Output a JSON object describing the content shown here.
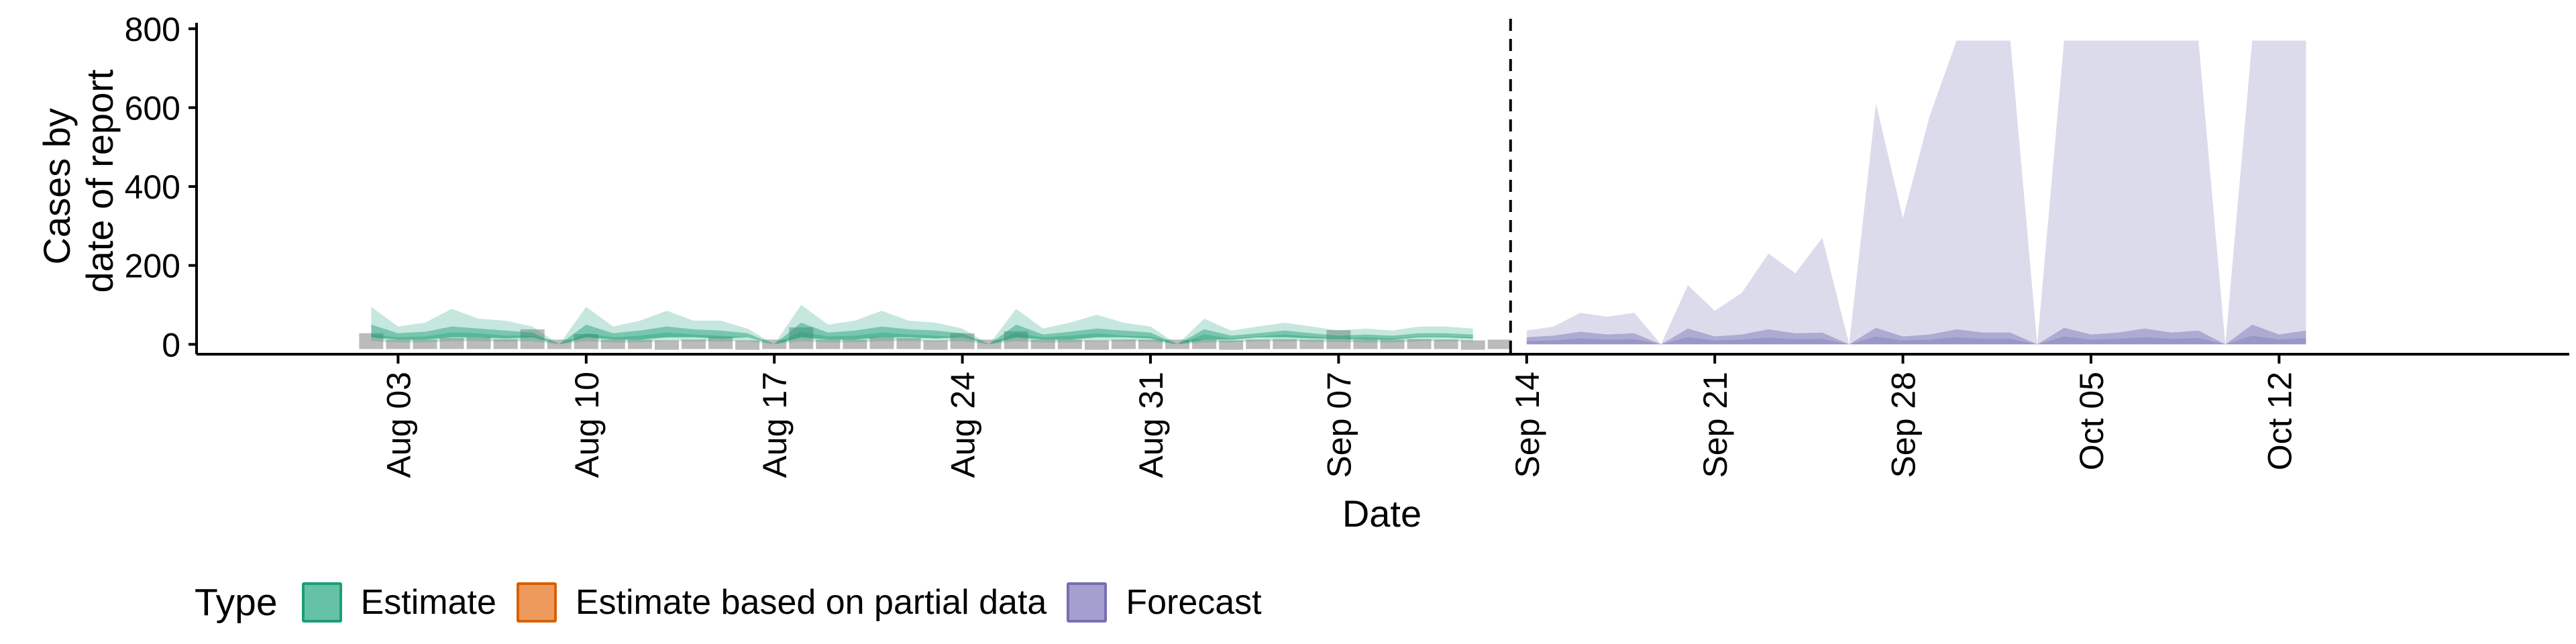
{
  "chart_data": {
    "type": "area",
    "title": "",
    "xlabel": "Date",
    "ylabel_lines": [
      "Cases by",
      "date of report"
    ],
    "ylim": [
      -25,
      815
    ],
    "yticks": [
      0,
      200,
      400,
      600,
      800
    ],
    "xlim": [
      -7.5,
      80.8
    ],
    "x_origin_date": "Aug 03",
    "x_ticks": [
      {
        "day": 0,
        "label": "Aug 03"
      },
      {
        "day": 7,
        "label": "Aug 10"
      },
      {
        "day": 14,
        "label": "Aug 17"
      },
      {
        "day": 21,
        "label": "Aug 24"
      },
      {
        "day": 28,
        "label": "Aug 31"
      },
      {
        "day": 35,
        "label": "Sep 07"
      },
      {
        "day": 42,
        "label": "Sep 14"
      },
      {
        "day": 49,
        "label": "Sep 21"
      },
      {
        "day": 56,
        "label": "Sep 28"
      },
      {
        "day": 63,
        "label": "Oct 05"
      },
      {
        "day": 70,
        "label": "Oct 12"
      }
    ],
    "vline_day": 41.4,
    "grid": false,
    "legend": {
      "title": "Type",
      "position": "bottom-left",
      "entries": [
        {
          "label": "Estimate",
          "fill": "#66c2a5",
          "border": "#1b9e77"
        },
        {
          "label": "Estimate based on partial data",
          "fill": "#ee9a5c",
          "border": "#d95f02"
        },
        {
          "label": "Forecast",
          "fill": "#a49fcf",
          "border": "#7570b3"
        }
      ]
    },
    "reported_cases": {
      "color": "#b4b4b4",
      "days": [
        -1,
        0,
        1,
        2,
        3,
        4,
        5,
        6,
        7,
        8,
        9,
        10,
        11,
        12,
        13,
        14,
        15,
        16,
        17,
        18,
        19,
        20,
        21,
        22,
        23,
        24,
        25,
        26,
        27,
        28,
        29,
        30,
        31,
        32,
        33,
        34,
        35,
        36,
        37,
        38,
        39,
        40,
        41
      ],
      "values": [
        40,
        10,
        5,
        28,
        30,
        25,
        50,
        0,
        38,
        5,
        10,
        20,
        15,
        30,
        20,
        0,
        55,
        10,
        5,
        30,
        28,
        20,
        40,
        0,
        45,
        10,
        5,
        20,
        15,
        10,
        0,
        10,
        20,
        15,
        25,
        15,
        48,
        5,
        10,
        25,
        15,
        20,
        15
      ]
    },
    "series": [
      {
        "name": "Estimate",
        "fill": "#1b9e77",
        "days": [
          -1,
          0,
          1,
          2,
          3,
          4,
          5,
          6,
          7,
          8,
          9,
          10,
          11,
          12,
          13,
          14,
          15,
          16,
          17,
          18,
          19,
          20,
          21,
          22,
          23,
          24,
          25,
          26,
          27,
          28,
          29,
          30,
          31,
          32,
          33,
          34,
          35,
          36,
          37,
          38,
          39,
          40
        ],
        "outer_lower": [
          8,
          5,
          5,
          8,
          8,
          7,
          8,
          0,
          8,
          5,
          5,
          8,
          8,
          7,
          8,
          0,
          8,
          5,
          5,
          8,
          8,
          7,
          8,
          0,
          8,
          5,
          5,
          8,
          8,
          7,
          0,
          5,
          5,
          8,
          8,
          7,
          6,
          5,
          5,
          8,
          8,
          7
        ],
        "outer_upper": [
          95,
          45,
          55,
          90,
          65,
          60,
          45,
          0,
          95,
          45,
          60,
          85,
          60,
          60,
          40,
          0,
          100,
          50,
          60,
          85,
          60,
          55,
          40,
          0,
          90,
          40,
          55,
          75,
          55,
          45,
          0,
          65,
          35,
          45,
          55,
          45,
          35,
          40,
          35,
          45,
          45,
          40
        ],
        "inner_lower": [
          18,
          12,
          12,
          18,
          18,
          15,
          18,
          0,
          18,
          12,
          12,
          18,
          18,
          15,
          18,
          0,
          18,
          12,
          12,
          18,
          18,
          15,
          18,
          0,
          18,
          12,
          12,
          18,
          18,
          15,
          0,
          12,
          12,
          18,
          18,
          15,
          14,
          12,
          12,
          18,
          18,
          15
        ],
        "inner_upper": [
          50,
          28,
          32,
          45,
          40,
          35,
          30,
          0,
          50,
          28,
          35,
          45,
          38,
          35,
          28,
          0,
          55,
          30,
          35,
          45,
          38,
          35,
          28,
          0,
          50,
          25,
          32,
          40,
          35,
          30,
          0,
          38,
          22,
          28,
          35,
          28,
          22,
          25,
          22,
          28,
          28,
          25
        ],
        "median": [
          25,
          18,
          20,
          30,
          28,
          22,
          22,
          0,
          28,
          18,
          22,
          30,
          25,
          22,
          18,
          0,
          32,
          20,
          22,
          30,
          25,
          22,
          18,
          0,
          30,
          18,
          22,
          28,
          22,
          20,
          0,
          25,
          15,
          20,
          25,
          20,
          15,
          18,
          15,
          20,
          20,
          18
        ]
      },
      {
        "name": "Forecast",
        "fill": "#7570b3",
        "days": [
          42,
          43,
          44,
          45,
          46,
          47,
          48,
          49,
          50,
          51,
          52,
          53,
          54,
          55,
          56,
          57,
          58,
          59,
          60,
          61,
          62,
          63,
          64,
          65,
          66,
          67,
          68,
          69,
          70,
          71
        ],
        "outer_lower": [
          0,
          0,
          0,
          0,
          0,
          0,
          0,
          0,
          0,
          0,
          0,
          0,
          0,
          0,
          0,
          0,
          0,
          0,
          0,
          0,
          0,
          0,
          0,
          0,
          0,
          0,
          0,
          0,
          0,
          0
        ],
        "outer_upper": [
          35,
          45,
          80,
          70,
          80,
          0,
          150,
          85,
          130,
          230,
          180,
          270,
          0,
          610,
          320,
          580,
          770,
          770,
          770,
          0,
          770,
          770,
          770,
          770,
          770,
          770,
          0,
          770,
          770,
          770
        ],
        "inner_lower": [
          0,
          0,
          0,
          0,
          0,
          0,
          0,
          0,
          0,
          0,
          0,
          0,
          0,
          0,
          0,
          0,
          0,
          0,
          0,
          0,
          0,
          0,
          0,
          0,
          0,
          0,
          0,
          0,
          0,
          0
        ],
        "inner_upper": [
          18,
          22,
          32,
          25,
          28,
          0,
          40,
          20,
          25,
          38,
          28,
          30,
          0,
          42,
          20,
          25,
          38,
          30,
          30,
          0,
          42,
          25,
          30,
          40,
          30,
          35,
          0,
          50,
          25,
          35
        ],
        "median": [
          8,
          10,
          15,
          12,
          13,
          0,
          18,
          10,
          12,
          17,
          13,
          14,
          0,
          20,
          10,
          12,
          18,
          14,
          14,
          0,
          20,
          12,
          14,
          18,
          14,
          16,
          0,
          22,
          12,
          16
        ]
      }
    ]
  }
}
